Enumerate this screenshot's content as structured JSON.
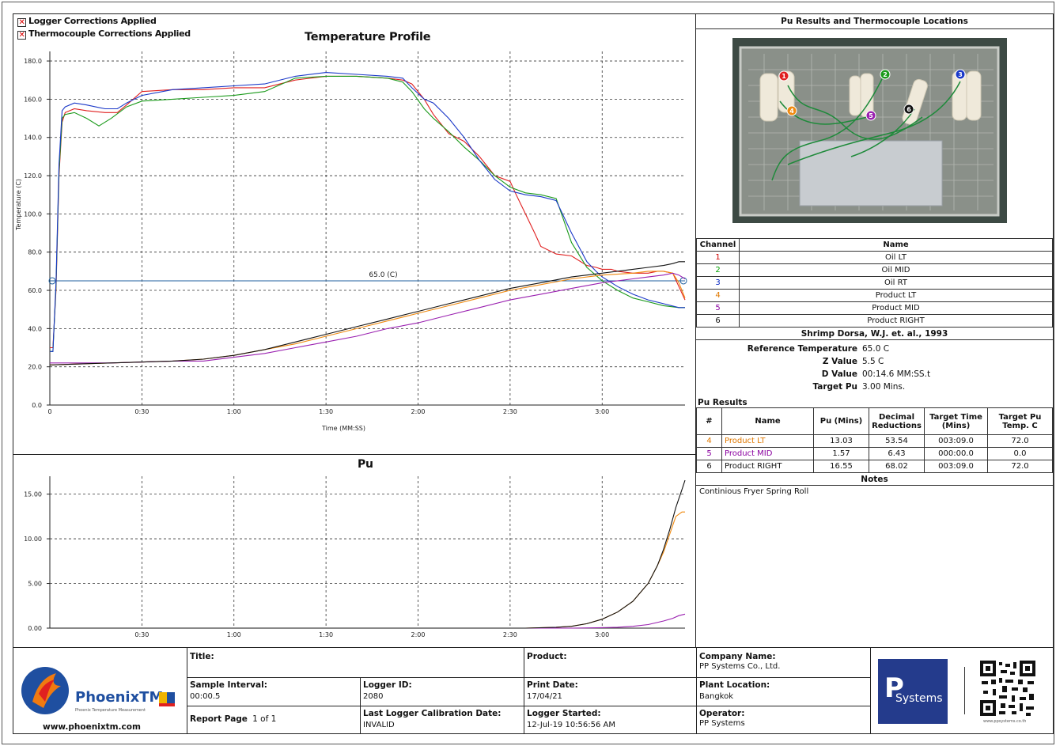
{
  "legend": {
    "logger_corrections": "Logger Corrections Applied",
    "thermocouple_corrections": "Thermocouple Corrections Applied",
    "check_mark": "✕"
  },
  "chart_data": [
    {
      "type": "line",
      "title": "Temperature Profile",
      "xlabel": "Time (MM:SS)",
      "ylabel": "Temperature (C)",
      "xlim": [
        0,
        207
      ],
      "ylim": [
        0,
        185
      ],
      "y_ticks": [
        "0.0",
        "20.0",
        "40.0",
        "60.0",
        "80.0",
        "100.0",
        "120.0",
        "140.0",
        "160.0",
        "180.0"
      ],
      "x_ticks": [
        "0",
        "0:30",
        "1:00",
        "1:30",
        "2:00",
        "2:30",
        "3:00"
      ],
      "reference_line": {
        "value": 65.0,
        "label": "65.0 (C)",
        "color": "#1f5f9f"
      },
      "grid": true,
      "series": [
        {
          "name": "Oil LT",
          "color": "#e02020",
          "x": [
            0,
            1,
            2,
            3,
            4,
            5,
            8,
            12,
            18,
            22,
            25,
            30,
            40,
            50,
            60,
            70,
            80,
            90,
            100,
            110,
            115,
            118,
            122,
            125,
            130,
            135,
            140,
            145,
            150,
            152,
            155,
            158,
            160,
            165,
            170,
            175,
            178,
            180,
            183,
            185,
            190,
            195,
            198,
            200,
            203,
            205,
            207
          ],
          "y": [
            30,
            30,
            60,
            120,
            148,
            153,
            155,
            154,
            153,
            153,
            157,
            164,
            165,
            165,
            166,
            166,
            170,
            172,
            172,
            171,
            170,
            168,
            160,
            152,
            142,
            138,
            130,
            120,
            117,
            110,
            100,
            90,
            83,
            79,
            78,
            73,
            72,
            71,
            71,
            70,
            69,
            69,
            70,
            70,
            69,
            62,
            55
          ]
        },
        {
          "name": "Oil MID",
          "color": "#1b9a1b",
          "x": [
            0,
            1,
            2,
            3,
            4,
            5,
            8,
            12,
            16,
            20,
            25,
            30,
            40,
            50,
            60,
            70,
            80,
            90,
            100,
            110,
            115,
            118,
            122,
            125,
            130,
            135,
            140,
            145,
            150,
            155,
            160,
            165,
            170,
            175,
            180,
            185,
            190,
            195,
            200,
            205,
            207
          ],
          "y": [
            28,
            28,
            62,
            122,
            150,
            152,
            153,
            150,
            146,
            150,
            156,
            159,
            160,
            161,
            162,
            164,
            171,
            172,
            172,
            171,
            169,
            164,
            155,
            150,
            143,
            135,
            128,
            120,
            114,
            111,
            110,
            108,
            85,
            72,
            65,
            60,
            56,
            54,
            52,
            51,
            51
          ]
        },
        {
          "name": "Oil RT",
          "color": "#1a38c8",
          "x": [
            0,
            1,
            2,
            3,
            4,
            5,
            8,
            12,
            18,
            22,
            25,
            30,
            40,
            50,
            60,
            70,
            80,
            90,
            100,
            110,
            115,
            118,
            122,
            125,
            130,
            135,
            140,
            145,
            150,
            155,
            160,
            165,
            170,
            175,
            178,
            180,
            185,
            190,
            195,
            200,
            205,
            207
          ],
          "y": [
            28,
            28,
            64,
            126,
            154,
            156,
            158,
            157,
            155,
            155,
            158,
            162,
            165,
            166,
            167,
            168,
            172,
            174,
            173,
            172,
            171,
            166,
            160,
            158,
            150,
            140,
            128,
            118,
            112,
            110,
            109,
            107,
            90,
            75,
            70,
            67,
            62,
            58,
            55,
            53,
            51,
            51
          ]
        },
        {
          "name": "Product LT",
          "color": "#f08a10",
          "x": [
            0,
            20,
            40,
            50,
            60,
            70,
            80,
            90,
            100,
            110,
            120,
            130,
            140,
            150,
            160,
            170,
            180,
            190,
            195,
            200,
            203,
            205,
            207
          ],
          "y": [
            21,
            22,
            23,
            24,
            26,
            29,
            32,
            36,
            40,
            44,
            48,
            52,
            56,
            60,
            63,
            66,
            68,
            69,
            70,
            70,
            69,
            64,
            56
          ]
        },
        {
          "name": "Product MID",
          "color": "#9a20b0",
          "x": [
            0,
            20,
            40,
            50,
            60,
            70,
            80,
            90,
            100,
            110,
            120,
            130,
            140,
            150,
            160,
            170,
            180,
            190,
            195,
            200,
            203,
            205,
            207
          ],
          "y": [
            22,
            22,
            23,
            23,
            25,
            27,
            30,
            33,
            36,
            40,
            43,
            47,
            51,
            55,
            58,
            61,
            64,
            66,
            67,
            68,
            69,
            68,
            66
          ]
        },
        {
          "name": "Product RIGHT",
          "color": "#111111",
          "x": [
            0,
            20,
            40,
            50,
            60,
            70,
            80,
            90,
            100,
            110,
            120,
            130,
            140,
            150,
            160,
            170,
            180,
            190,
            195,
            200,
            203,
            205,
            207
          ],
          "y": [
            21,
            22,
            23,
            24,
            26,
            29,
            33,
            37,
            41,
            45,
            49,
            53,
            57,
            61,
            64,
            67,
            69,
            71,
            72,
            73,
            74,
            75,
            75
          ]
        }
      ]
    },
    {
      "type": "line",
      "title": "Pu",
      "xlim": [
        0,
        207
      ],
      "ylim": [
        0,
        17
      ],
      "y_ticks": [
        "0.00",
        "5.00",
        "10.00",
        "15.00"
      ],
      "x_ticks": [
        "0:30",
        "1:00",
        "1:30",
        "2:00",
        "2:30",
        "3:00"
      ],
      "grid": true,
      "series": [
        {
          "name": "Product LT",
          "color": "#f08a10",
          "x": [
            0,
            155,
            165,
            170,
            175,
            180,
            185,
            190,
            195,
            198,
            200,
            202,
            204,
            206,
            207
          ],
          "y": [
            0,
            0,
            0.1,
            0.2,
            0.5,
            1.0,
            1.8,
            3.0,
            5.0,
            7.0,
            8.5,
            10.5,
            12.5,
            13.0,
            13.0
          ]
        },
        {
          "name": "Product MID",
          "color": "#9a20b0",
          "x": [
            0,
            170,
            180,
            185,
            190,
            195,
            200,
            203,
            205,
            207
          ],
          "y": [
            0,
            0,
            0.05,
            0.1,
            0.2,
            0.4,
            0.8,
            1.1,
            1.4,
            1.57
          ]
        },
        {
          "name": "Product RIGHT",
          "color": "#111111",
          "x": [
            0,
            155,
            165,
            170,
            175,
            180,
            185,
            190,
            195,
            198,
            200,
            202,
            204,
            206,
            207
          ],
          "y": [
            0,
            0,
            0.1,
            0.2,
            0.5,
            1.0,
            1.8,
            3.0,
            5.0,
            7.0,
            8.8,
            11.0,
            13.5,
            15.5,
            16.55
          ]
        }
      ]
    }
  ],
  "right_panel": {
    "header": "Pu Results and Thermocouple Locations",
    "photo_markers": [
      "1",
      "2",
      "3",
      "4",
      "5",
      "6"
    ],
    "channel_table": {
      "headers": [
        "Channel",
        "Name"
      ],
      "rows": [
        {
          "ch": "1",
          "name": "Oil LT",
          "cls": "c1"
        },
        {
          "ch": "2",
          "name": "Oil MID",
          "cls": "c2"
        },
        {
          "ch": "3",
          "name": "Oil RT",
          "cls": "c3"
        },
        {
          "ch": "4",
          "name": "Product LT",
          "cls": "c4"
        },
        {
          "ch": "5",
          "name": "Product MID",
          "cls": "c5"
        },
        {
          "ch": "6",
          "name": "Product RIGHT",
          "cls": "c6"
        }
      ]
    },
    "reference_title": "Shrimp Dorsa, W.J. et. al., 1993",
    "reference": [
      {
        "k": "Reference Temperature",
        "v": "65.0 C"
      },
      {
        "k": "Z Value",
        "v": "5.5 C"
      },
      {
        "k": "D Value",
        "v": "00:14.6 MM:SS.t"
      },
      {
        "k": "Target Pu",
        "v": "3.00 Mins."
      }
    ],
    "pu_results_label": "Pu Results",
    "pu_table": {
      "headers": [
        "#",
        "Name",
        "Pu (Mins)",
        "Decimal Reductions",
        "Target Time (Mins)",
        "Target Pu Temp. C"
      ],
      "rows": [
        {
          "n": "4",
          "name": "Product LT",
          "pu": "13.03",
          "dec": "53.54",
          "tt": "003:09.0",
          "tp": "72.0",
          "cls": "c4"
        },
        {
          "n": "5",
          "name": "Product MID",
          "pu": "1.57",
          "dec": "6.43",
          "tt": "000:00.0",
          "tp": "0.0",
          "cls": "c5"
        },
        {
          "n": "6",
          "name": "Product RIGHT",
          "pu": "16.55",
          "dec": "68.02",
          "tt": "003:09.0",
          "tp": "72.0",
          "cls": "c6"
        }
      ]
    },
    "notes_label": "Notes",
    "notes_text": "Continious Fryer Spring Roll"
  },
  "footer": {
    "logo_text": "PhoenixTM",
    "logo_sub": "Phoenix Temperature Measurement",
    "website": "www.phoenixtm.com",
    "title_label": "Title:",
    "product_label": "Product:",
    "sample_interval_label": "Sample Interval:",
    "sample_interval": "00:00.5",
    "logger_id_label": "Logger ID:",
    "logger_id": "2080",
    "print_date_label": "Print Date:",
    "print_date": "17/04/21",
    "report_page_label": "Report Page",
    "report_page": "1 of 1",
    "calib_label": "Last Logger Calibration Date:",
    "calib": "INVALID",
    "logger_started_label": "Logger Started:",
    "logger_started": "12-Jul-19 10:56:56 AM",
    "company_label": "Company Name:",
    "company": "PP Systems Co., Ltd.",
    "plant_label": "Plant Location:",
    "plant": "Bangkok",
    "operator_label": "Operator:",
    "operator": "PP Systems",
    "pp_logo": "Systems",
    "pp_logo_p": "P",
    "qr_caption": "www.ppsystems.co.th"
  }
}
